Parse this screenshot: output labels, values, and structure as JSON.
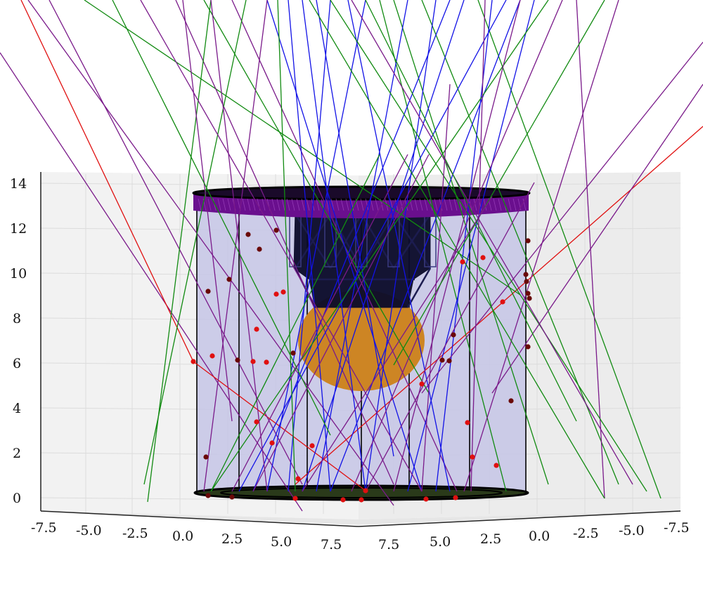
{
  "axes": {
    "z_ticks": [
      "0",
      "2",
      "4",
      "6",
      "8",
      "10",
      "12",
      "14"
    ],
    "x_ticks": [
      "-7.5",
      "-5.0",
      "-2.5",
      "0.0",
      "2.5",
      "5.0",
      "7.5"
    ],
    "y_ticks": [
      "7.5",
      "5.0",
      "2.5",
      "0.0",
      "-2.5",
      "-5.0",
      "-7.5"
    ],
    "grid": true,
    "pane_color": "#f2f2f2"
  },
  "detector": {
    "cylinder_fill": "#c6c6e6",
    "top_ring_color": "#6a0f8e",
    "bottom_ring_color": "#1a2a10",
    "support_structure_color": "#0b0b2a",
    "sphere_color": "#cd8524"
  },
  "tracks": {
    "colors": {
      "blue": "#1212e6",
      "green": "#118a11",
      "purple": "#7a1a8a",
      "red": "#e01010"
    }
  },
  "hits": {
    "colors": {
      "bright": "#e01010",
      "dark": "#6a0808"
    }
  }
}
